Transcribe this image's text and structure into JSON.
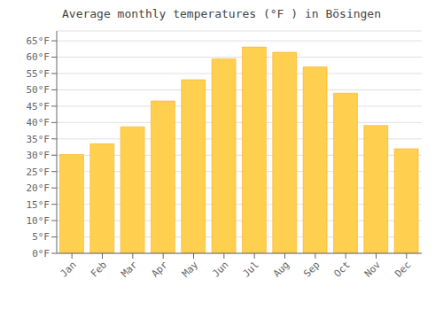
{
  "chart_data": {
    "type": "bar",
    "title": "Average monthly temperatures (°F ) in Bösingen",
    "categories": [
      "Jan",
      "Feb",
      "Mar",
      "Apr",
      "May",
      "Jun",
      "Jul",
      "Aug",
      "Sep",
      "Oct",
      "Nov",
      "Dec"
    ],
    "values": [
      30.2,
      33.5,
      38.7,
      46.6,
      53.1,
      59.5,
      63.1,
      61.5,
      57.0,
      49.0,
      39.1,
      32.0
    ],
    "color": "#FFD050",
    "ylim": [
      0,
      68
    ],
    "yticks": [
      {
        "value": 0,
        "label": "0°F"
      },
      {
        "value": 5,
        "label": "5°F"
      },
      {
        "value": 10,
        "label": "10°F"
      },
      {
        "value": 15,
        "label": "15°F"
      },
      {
        "value": 20,
        "label": "20°F"
      },
      {
        "value": 25,
        "label": "25°F"
      },
      {
        "value": 30,
        "label": "30°F"
      },
      {
        "value": 35,
        "label": "35°F"
      },
      {
        "value": 40,
        "label": "40°F"
      },
      {
        "value": 45,
        "label": "45°F"
      },
      {
        "value": 50,
        "label": "50°F"
      },
      {
        "value": 55,
        "label": "55°F"
      },
      {
        "value": 60,
        "label": "60°F"
      },
      {
        "value": 65,
        "label": "65°F"
      }
    ],
    "grid": true
  }
}
